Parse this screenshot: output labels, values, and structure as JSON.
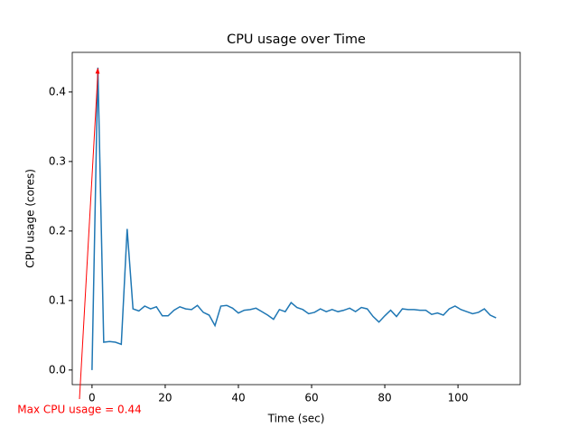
{
  "chart_data": {
    "type": "line",
    "title": "CPU usage over Time",
    "x_label": "Time (sec)",
    "y_label": "CPU usage (cores)",
    "x": [
      0,
      1.6,
      3.2,
      4.8,
      6.4,
      8,
      9.6,
      11.2,
      12.8,
      14.4,
      16,
      17.6,
      19.2,
      20.8,
      22.4,
      24,
      25.6,
      27.2,
      28.8,
      30.4,
      32,
      33.6,
      35.2,
      36.8,
      38.4,
      40,
      41.6,
      43.2,
      44.8,
      46.4,
      48,
      49.6,
      51.2,
      52.8,
      54.4,
      56,
      57.6,
      59.2,
      60.8,
      62.4,
      64,
      65.6,
      67.2,
      68.8,
      70.4,
      72,
      73.6,
      75.2,
      76.8,
      78.4,
      80,
      81.6,
      83.2,
      84.8,
      86.4,
      88,
      89.6,
      91.2,
      92.8,
      94.4,
      96,
      97.6,
      99.2,
      100.8,
      102.4,
      104,
      105.6,
      107.2,
      108.8,
      110.4
    ],
    "values": [
      0,
      0.435,
      0.04,
      0.041,
      0.04,
      0.037,
      0.203,
      0.088,
      0.085,
      0.092,
      0.088,
      0.091,
      0.078,
      0.078,
      0.086,
      0.091,
      0.088,
      0.087,
      0.093,
      0.083,
      0.079,
      0.064,
      0.092,
      0.093,
      0.089,
      0.082,
      0.086,
      0.087,
      0.089,
      0.084,
      0.079,
      0.073,
      0.087,
      0.084,
      0.097,
      0.09,
      0.087,
      0.081,
      0.083,
      0.088,
      0.084,
      0.087,
      0.084,
      0.086,
      0.089,
      0.084,
      0.09,
      0.088,
      0.077,
      0.069,
      0.078,
      0.086,
      0.077,
      0.088,
      0.087,
      0.087,
      0.086,
      0.086,
      0.08,
      0.082,
      0.079,
      0.088,
      0.092,
      0.087,
      0.084,
      0.081,
      0.083,
      0.088,
      0.079,
      0.075
    ],
    "color": "#1f77b4",
    "xlim": [
      -5.4,
      117
    ],
    "ylim": [
      -0.021,
      0.457
    ],
    "xticks": [
      0,
      20,
      40,
      60,
      80,
      100
    ],
    "yticks": [
      {
        "value": 0,
        "label": "0.0"
      },
      0.1,
      0.2,
      0.3,
      0.4
    ],
    "annotation": {
      "text": "Max CPU usage = 0.44",
      "color": "red"
    }
  }
}
